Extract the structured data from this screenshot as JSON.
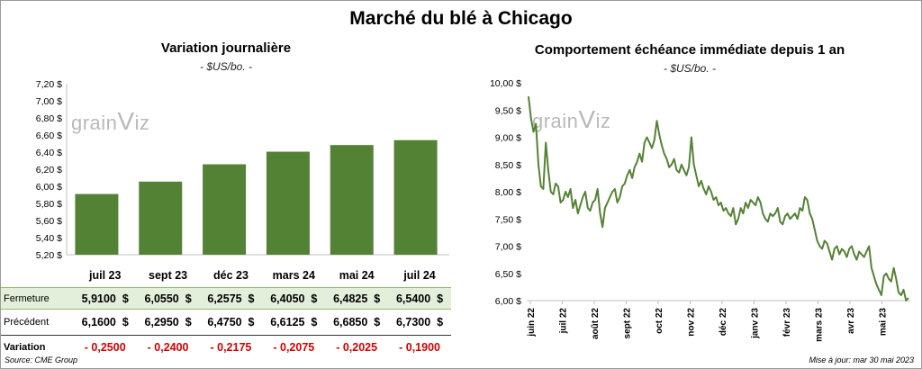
{
  "title": "Marché du blé à Chicago",
  "left": {
    "title": "Variation  journalière",
    "unit": "- $US/bo. -",
    "watermark": "Grain Wiz",
    "row_labels": {
      "close": "Fermeture",
      "previous": "Précédent",
      "change": "Variation"
    },
    "table": {
      "months": [
        "juil 23",
        "sept 23",
        "déc 23",
        "mars 24",
        "mai 24",
        "juil 24"
      ],
      "close": [
        "5,9100  $",
        "6,0550  $",
        "6,2575  $",
        "6,4050  $",
        "6,4825  $",
        "6,5400  $"
      ],
      "previous": [
        "6,1600  $",
        "6,2950  $",
        "6,4750  $",
        "6,6125  $",
        "6,6850  $",
        "6,7300  $"
      ],
      "change": [
        "- 0,2500",
        "- 0,2400",
        "- 0,2175",
        "- 0,2075",
        "- 0,2025",
        "- 0,1900"
      ]
    }
  },
  "right": {
    "title": "Comportement  échéance immédiate depuis 1 an",
    "unit": "- $US/bo. -",
    "watermark": "Grain Wiz"
  },
  "footer": {
    "source": "Source: CME Group",
    "updated": "Mise à jour: mar 30 mai 2023"
  },
  "colors": {
    "bar": "#548235",
    "line": "#548235",
    "close_row_bg": "#e3efda",
    "negative": "#d60000"
  },
  "chart_data": [
    {
      "type": "bar",
      "categories": [
        "juil 23",
        "sept 23",
        "déc 23",
        "mars 24",
        "mai 24",
        "juil 24"
      ],
      "values": [
        5.91,
        6.055,
        6.2575,
        6.405,
        6.4825,
        6.54
      ],
      "ylim": [
        5.2,
        7.2
      ],
      "yticks": [
        "5,20 $",
        "5,40 $",
        "5,60 $",
        "5,80 $",
        "6,00 $",
        "6,20 $",
        "6,40 $",
        "6,60 $",
        "6,80 $",
        "7,00 $",
        "7,20 $"
      ],
      "title": "Variation  journalière",
      "ylabel": "- $US/bo. -",
      "grid": false
    },
    {
      "type": "line",
      "x_ticks": [
        "juin 22",
        "juil 22",
        "août 22",
        "sept 22",
        "oct 22",
        "nov 22",
        "déc 22",
        "janv 23",
        "févr 23",
        "mars 23",
        "avr 23",
        "mai 23"
      ],
      "x_range": [
        "2022-05-31",
        "2023-05-30"
      ],
      "ylim": [
        6.0,
        10.0
      ],
      "yticks": [
        "6,00 $",
        "6,50 $",
        "7,00 $",
        "7,50 $",
        "8,00 $",
        "8,50 $",
        "9,00 $",
        "9,50 $",
        "10,00 $"
      ],
      "title": "Comportement  échéance immédiate depuis 1 an",
      "ylabel": "- $US/bo. -",
      "grid": false,
      "series": [
        {
          "values": [
            9.75,
            9.35,
            9.1,
            9.25,
            8.5,
            8.1,
            8.05,
            8.9,
            8.4,
            8.0,
            7.95,
            8.15,
            8.1,
            7.8,
            7.85,
            8.0,
            7.9,
            8.05,
            7.7,
            7.85,
            7.6,
            7.75,
            7.9,
            8.0,
            7.7,
            7.65,
            7.8,
            7.85,
            8.05,
            7.6,
            7.35,
            7.7,
            7.8,
            7.9,
            8.0,
            8.05,
            7.8,
            7.9,
            8.1,
            8.15,
            8.3,
            8.4,
            8.25,
            8.45,
            8.55,
            8.7,
            8.55,
            8.9,
            9.0,
            8.9,
            8.8,
            8.95,
            9.3,
            9.05,
            8.85,
            8.7,
            8.6,
            8.45,
            8.5,
            8.6,
            8.4,
            8.35,
            8.5,
            8.4,
            8.3,
            8.45,
            9.0,
            8.5,
            8.3,
            8.1,
            8.2,
            8.05,
            7.95,
            8.1,
            8.0,
            7.85,
            7.9,
            7.75,
            7.8,
            7.65,
            7.7,
            7.6,
            7.55,
            7.7,
            7.4,
            7.5,
            7.7,
            7.6,
            7.8,
            7.7,
            7.85,
            7.8,
            7.75,
            7.9,
            7.8,
            7.6,
            7.5,
            7.45,
            7.6,
            7.55,
            7.6,
            7.7,
            7.45,
            7.4,
            7.55,
            7.6,
            7.5,
            7.55,
            7.6,
            7.5,
            7.7,
            7.65,
            7.9,
            7.85,
            7.6,
            7.5,
            7.3,
            7.1,
            7.0,
            6.95,
            7.1,
            7.05,
            6.9,
            6.75,
            6.95,
            7.0,
            6.85,
            6.95,
            6.9,
            6.8,
            6.95,
            7.0,
            6.85,
            6.75,
            6.9,
            6.85,
            6.8,
            6.9,
            7.0,
            6.6,
            6.45,
            6.3,
            6.2,
            6.1,
            6.45,
            6.5,
            6.4,
            6.35,
            6.6,
            6.4,
            6.15,
            6.1,
            6.2,
            6.0,
            6.05
          ]
        }
      ]
    }
  ]
}
